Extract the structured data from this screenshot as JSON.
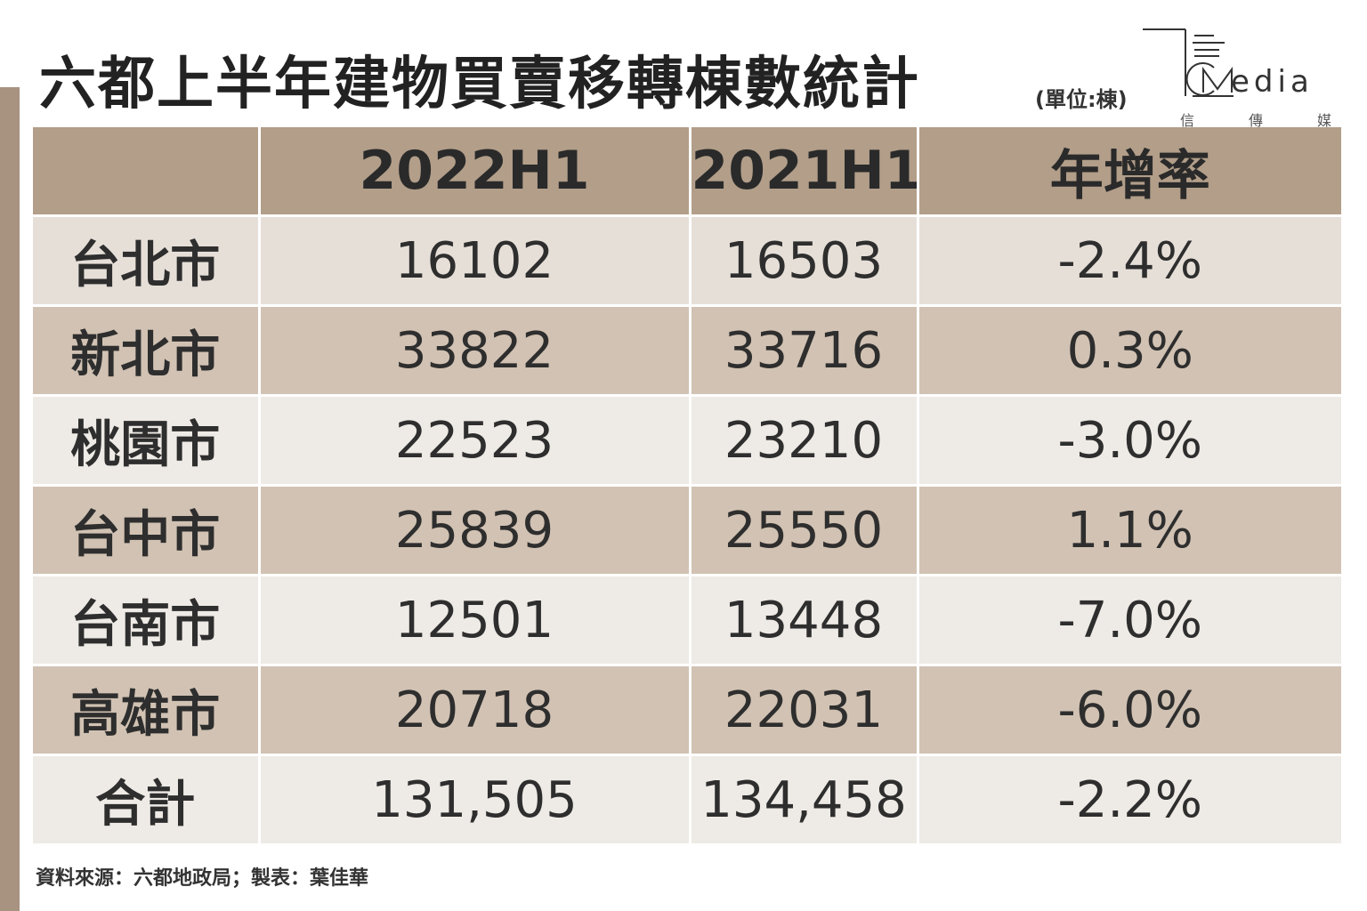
{
  "title": "六都上半年建物買賣移轉棟數統計",
  "unit": "(單位:棟)",
  "logo": {
    "word": "edia",
    "cn": [
      "信",
      "傳",
      "媒"
    ]
  },
  "source": "資料來源：六都地政局；製表：葉佳華",
  "colors": {
    "header": "#b29e89",
    "row_light": "#e6dfd8",
    "row_dark": "#d1c2b3",
    "accent_bar": "#a89280"
  },
  "chart_data": {
    "type": "table",
    "columns": [
      "",
      "2022H1",
      "2021H1",
      "年增率"
    ],
    "rows": [
      {
        "label": "台北市",
        "v2022": "16102",
        "v2021": "16503",
        "growth": "-2.4%"
      },
      {
        "label": "新北市",
        "v2022": "33822",
        "v2021": "33716",
        "growth": "0.3%"
      },
      {
        "label": "桃園市",
        "v2022": "22523",
        "v2021": "23210",
        "growth": "-3.0%"
      },
      {
        "label": "台中市",
        "v2022": "25839",
        "v2021": "25550",
        "growth": "1.1%"
      },
      {
        "label": "台南市",
        "v2022": "12501",
        "v2021": "13448",
        "growth": "-7.0%"
      },
      {
        "label": "高雄市",
        "v2022": "20718",
        "v2021": "22031",
        "growth": "-6.0%"
      },
      {
        "label": "合計",
        "v2022": "131,505",
        "v2021": "134,458",
        "growth": "-2.2%"
      }
    ]
  }
}
